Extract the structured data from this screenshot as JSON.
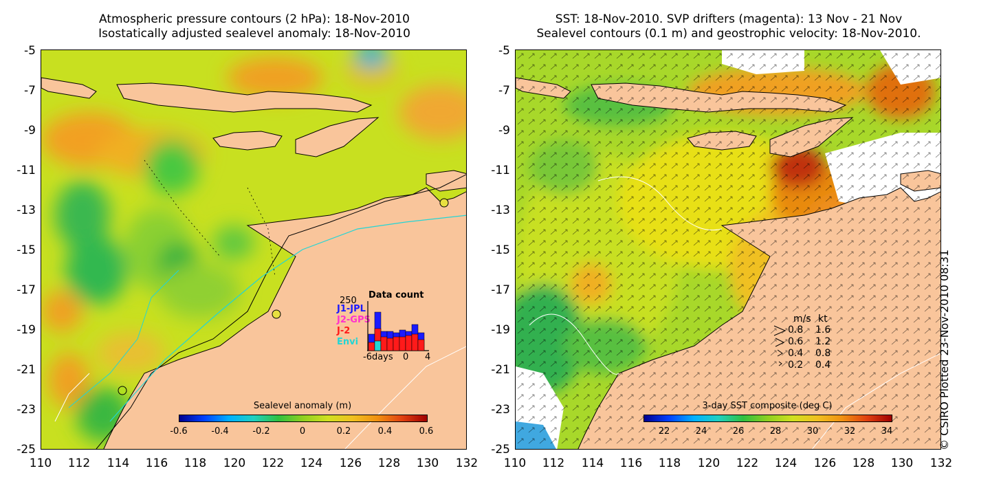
{
  "left_panel": {
    "title_line1": "Atmospheric pressure contours (2 hPa): 18-Nov-2010",
    "title_line2": "Isostatically adjusted sealevel anomaly: 18-Nov-2010",
    "colorbar": {
      "title": "Sealevel anomaly (m)",
      "ticks": [
        "-0.6",
        "-0.4",
        "-0.2",
        "0",
        "0.2",
        "0.4",
        "0.6"
      ]
    },
    "data_count": {
      "title": "Data count",
      "ymax_label": "250",
      "missions": [
        {
          "name": "J1-JPL",
          "color": "#1a1aff"
        },
        {
          "name": "J2-GPS",
          "color": "#ff33cc"
        },
        {
          "name": "J-2",
          "color": "#ff1a1a"
        },
        {
          "name": "Envi",
          "color": "#22d5d5"
        }
      ],
      "x_label_days": "-6days",
      "x_label_zero": "0",
      "x_label_end": "4"
    }
  },
  "right_panel": {
    "title_line1": "SST: 18-Nov-2010. SVP drifters (magenta): 13 Nov - 21 Nov",
    "title_line2": "Sealevel contours (0.1 m) and geostrophic velocity: 18-Nov-2010.",
    "colorbar": {
      "title": "3-day SST composite (deg C)",
      "ticks": [
        "22",
        "24",
        "26",
        "28",
        "30",
        "32",
        "34"
      ]
    },
    "velocity_legend": {
      "header_ms": "m/s",
      "header_kt": "kt",
      "rows": [
        {
          "ms": "0.8",
          "kt": "1.6"
        },
        {
          "ms": "0.6",
          "kt": "1.2"
        },
        {
          "ms": "0.4",
          "kt": "0.8"
        },
        {
          "ms": "0.2",
          "kt": "0.4"
        }
      ]
    }
  },
  "axes": {
    "y_ticks": [
      "-5",
      "-7",
      "-9",
      "-11",
      "-13",
      "-15",
      "-17",
      "-19",
      "-21",
      "-23",
      "-25"
    ],
    "x_ticks": [
      "110",
      "112",
      "114",
      "116",
      "118",
      "120",
      "122",
      "124",
      "126",
      "128",
      "130",
      "132"
    ]
  },
  "credit": "© CSIRO Plotted 23-Nov-2010 08:31",
  "colors": {
    "land": "#f9c59b",
    "ocean_base": "#c8e020"
  }
}
